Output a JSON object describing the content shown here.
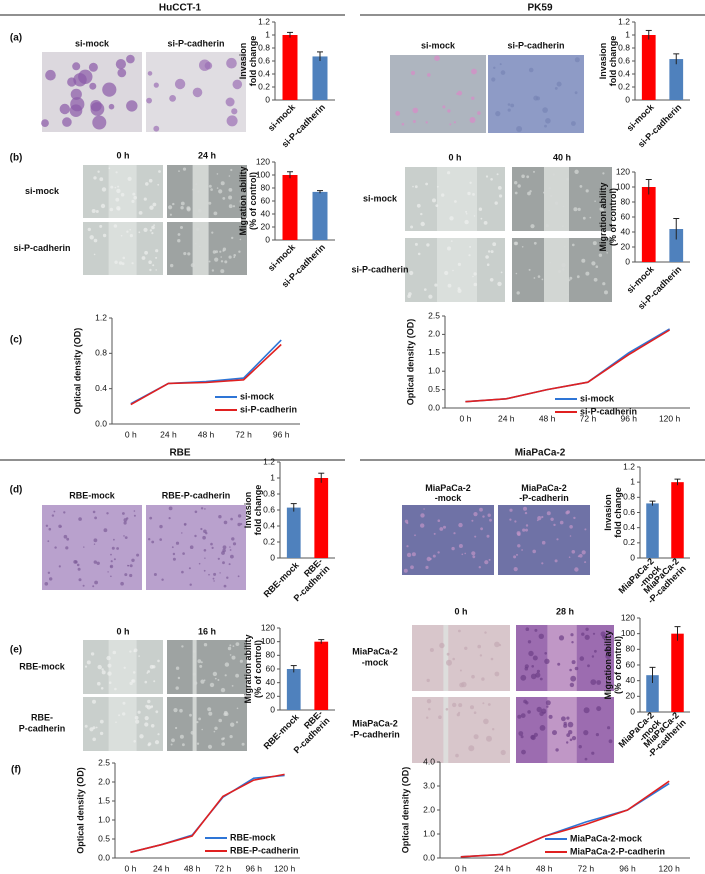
{
  "headers": [
    "HuCCT-1",
    "PK59",
    "RBE",
    "MiaPaCa-2"
  ],
  "panel_labels": [
    "(a)",
    "(b)",
    "(c)",
    "(d)",
    "(e)",
    "(f)"
  ],
  "image_panels": [
    {
      "columns": [
        "si-mock",
        "si-P-cadherin"
      ]
    },
    {
      "columns": [
        "si-mock",
        "si-P-cadherin"
      ]
    },
    {
      "columns": [
        "0 h",
        "24 h"
      ],
      "rows": [
        "si-mock",
        "si-P-cadherin"
      ]
    },
    {
      "columns": [
        "0 h",
        "40 h"
      ],
      "rows": [
        "si-mock",
        "si-P-cadherin"
      ]
    },
    {
      "columns": [
        "RBE-mock",
        "RBE-P-cadherin"
      ]
    },
    {
      "columns": [
        [
          "MiaPaCa-2",
          "-mock"
        ],
        [
          "MiaPaCa-2",
          "-P-cadherin"
        ]
      ]
    },
    {
      "columns": [
        "0 h",
        "16 h"
      ],
      "rows": [
        "RBE-mock",
        [
          "RBE-",
          "P-cadherin"
        ]
      ]
    },
    {
      "columns": [
        "0 h",
        "28 h"
      ],
      "rows": [
        [
          "MiaPaCa-2",
          "-mock"
        ],
        [
          "MiaPaCa-2",
          "-P-cadherin"
        ]
      ]
    }
  ],
  "chart_data": [
    {
      "type": "bar",
      "ylabel": [
        "Invasion",
        "fold change"
      ],
      "categories": [
        "si-mock",
        "si-P-cadherin"
      ],
      "values": [
        1.0,
        0.67
      ],
      "errors": [
        0.04,
        0.07
      ],
      "colors": [
        "#ff0000",
        "#4f81bd"
      ],
      "ylim": [
        0,
        1.2
      ],
      "yticks": [
        0,
        0.2,
        0.4,
        0.6,
        0.8,
        1,
        1.2
      ]
    },
    {
      "type": "bar",
      "ylabel": [
        "Invasion",
        "fold change"
      ],
      "categories": [
        "si-mock",
        "si-P-cadherin"
      ],
      "values": [
        1.0,
        0.63
      ],
      "errors": [
        0.07,
        0.08
      ],
      "colors": [
        "#ff0000",
        "#4f81bd"
      ],
      "ylim": [
        0,
        1.2
      ],
      "yticks": [
        0,
        0.2,
        0.4,
        0.6,
        0.8,
        1,
        1.2
      ]
    },
    {
      "type": "bar",
      "ylabel": [
        "Migration ability",
        "(% of control)"
      ],
      "categories": [
        "si-mock",
        "si-P-cadherin"
      ],
      "values": [
        100,
        74
      ],
      "errors": [
        5,
        2
      ],
      "colors": [
        "#ff0000",
        "#4f81bd"
      ],
      "ylim": [
        0,
        120
      ],
      "yticks": [
        0,
        20,
        40,
        60,
        80,
        100,
        120
      ]
    },
    {
      "type": "bar",
      "ylabel": [
        "Migration ability",
        "(% of control)"
      ],
      "categories": [
        "si-mock",
        "si-P-cadherin"
      ],
      "values": [
        100,
        44
      ],
      "errors": [
        10,
        14
      ],
      "colors": [
        "#ff0000",
        "#4f81bd"
      ],
      "ylim": [
        0,
        120
      ],
      "yticks": [
        0,
        20,
        40,
        60,
        80,
        100,
        120
      ]
    },
    {
      "type": "line",
      "ylabel": "Optical density (OD)",
      "categories": [
        "0 h",
        "24 h",
        "48 h",
        "72 h",
        "96 h"
      ],
      "series": [
        {
          "name": "si-mock",
          "color": "#2e75d6",
          "values": [
            0.23,
            0.46,
            0.48,
            0.52,
            0.95
          ]
        },
        {
          "name": "si-P-cadherin",
          "color": "#e02020",
          "values": [
            0.22,
            0.46,
            0.47,
            0.5,
            0.9
          ]
        }
      ],
      "ylim": [
        0,
        1.2
      ],
      "yticks": [
        {
          "value": 0,
          "label": "0.0"
        },
        0.4,
        0.8,
        1.2
      ]
    },
    {
      "type": "line",
      "ylabel": "Optical density (OD)",
      "categories": [
        "0 h",
        "24 h",
        "48 h",
        "72 h",
        "96 h",
        "120 h"
      ],
      "series": [
        {
          "name": "si-mock",
          "color": "#2e75d6",
          "values": [
            0.17,
            0.25,
            0.5,
            0.7,
            1.5,
            2.15
          ]
        },
        {
          "name": "si-P-cadherin",
          "color": "#e02020",
          "values": [
            0.17,
            0.25,
            0.5,
            0.7,
            1.45,
            2.12
          ]
        }
      ],
      "ylim": [
        0,
        2.5
      ],
      "yticks": [
        {
          "value": 0,
          "label": "0.0"
        },
        0.5,
        {
          "value": 1,
          "label": "1.0"
        },
        1.5,
        {
          "value": 2,
          "label": "2.0"
        },
        2.5
      ]
    },
    {
      "type": "bar",
      "ylabel": [
        "Invasion",
        "fold change"
      ],
      "categories": [
        "RBE-mock",
        [
          "RBE-",
          "P-cadherin"
        ]
      ],
      "values": [
        0.63,
        1.0
      ],
      "errors": [
        0.05,
        0.06
      ],
      "colors": [
        "#4f81bd",
        "#ff0000"
      ],
      "ylim": [
        0,
        1.2
      ],
      "yticks": [
        0,
        0.2,
        0.4,
        0.6,
        0.8,
        1,
        1.2
      ]
    },
    {
      "type": "bar",
      "ylabel": [
        "Invasion",
        "fold change"
      ],
      "categories": [
        [
          "MiaPaCa-2",
          "-mock"
        ],
        [
          "MiaPaCa-2",
          "-P-cadherin"
        ]
      ],
      "values": [
        0.72,
        1.0
      ],
      "errors": [
        0.03,
        0.04
      ],
      "colors": [
        "#4f81bd",
        "#ff0000"
      ],
      "ylim": [
        0,
        1.2
      ],
      "yticks": [
        0,
        0.2,
        0.4,
        0.6,
        0.8,
        1,
        1.2
      ]
    },
    {
      "type": "bar",
      "ylabel": [
        "Migration ability",
        "(% of control)"
      ],
      "categories": [
        "RBE-mock",
        [
          "RBE-",
          "P-cadherin"
        ]
      ],
      "values": [
        60,
        100
      ],
      "errors": [
        5,
        3
      ],
      "colors": [
        "#4f81bd",
        "#ff0000"
      ],
      "ylim": [
        0,
        120
      ],
      "yticks": [
        0,
        20,
        40,
        60,
        80,
        100,
        120
      ]
    },
    {
      "type": "bar",
      "ylabel": [
        "Migration ability",
        "(% of control)"
      ],
      "categories": [
        [
          "MiaPaCa-2",
          "-mock"
        ],
        [
          "MiaPaCa-2",
          "-P-cadherin"
        ]
      ],
      "values": [
        47,
        100
      ],
      "errors": [
        10,
        9
      ],
      "colors": [
        "#4f81bd",
        "#ff0000"
      ],
      "ylim": [
        0,
        120
      ],
      "yticks": [
        0,
        20,
        40,
        60,
        80,
        100,
        120
      ]
    },
    {
      "type": "line",
      "ylabel": "Optical density (OD)",
      "categories": [
        "0 h",
        "24 h",
        "48 h",
        "72 h",
        "96 h",
        "120 h"
      ],
      "series": [
        {
          "name": "RBE-mock",
          "color": "#2e75d6",
          "values": [
            0.15,
            0.35,
            0.6,
            1.6,
            2.1,
            2.17
          ]
        },
        {
          "name": "RBE-P-cadherin",
          "color": "#e02020",
          "values": [
            0.15,
            0.35,
            0.58,
            1.62,
            2.05,
            2.2
          ]
        }
      ],
      "ylim": [
        0,
        2.5
      ],
      "yticks": [
        {
          "value": 0,
          "label": "0.0"
        },
        0.5,
        {
          "value": 1,
          "label": "1.0"
        },
        1.5,
        {
          "value": 2,
          "label": "2.0"
        },
        2.5
      ]
    },
    {
      "type": "line",
      "ylabel": "Optical density (OD)",
      "categories": [
        "0 h",
        "24 h",
        "48 h",
        "72 h",
        "96 h",
        "120 h"
      ],
      "series": [
        {
          "name": "MiaPaCa-2-mock",
          "color": "#2e75d6",
          "values": [
            0.05,
            0.15,
            0.9,
            1.5,
            2.0,
            3.1
          ]
        },
        {
          "name": "MiaPaCa-2-P-cadherin",
          "color": "#e02020",
          "values": [
            0.05,
            0.15,
            0.9,
            1.4,
            2.0,
            3.2
          ]
        }
      ],
      "ylim": [
        0,
        4
      ],
      "yticks": [
        {
          "value": 0,
          "label": "0.0"
        },
        {
          "value": 1,
          "label": "1.0"
        },
        {
          "value": 2,
          "label": "2.0"
        },
        {
          "value": 3,
          "label": "3.0"
        },
        {
          "value": 4,
          "label": "4.0"
        }
      ]
    }
  ]
}
